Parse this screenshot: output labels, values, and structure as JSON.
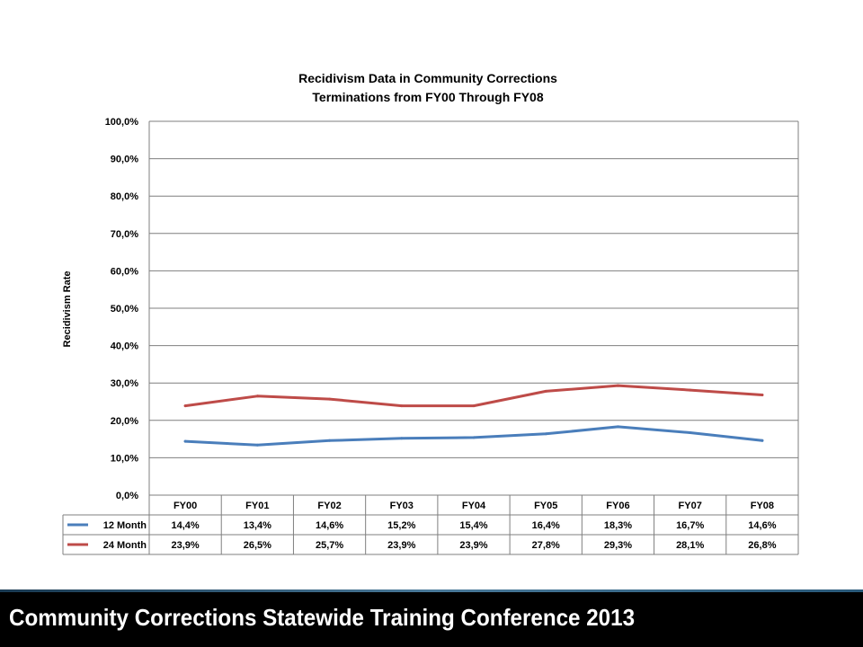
{
  "chart_data": {
    "type": "line",
    "title": [
      "Recidivism Data in Community Corrections",
      "Terminations from FY00 Through FY08"
    ],
    "ylabel": "Recidivism Rate",
    "ylim": [
      0,
      100
    ],
    "yticks": [
      "0,0%",
      "10,0%",
      "20,0%",
      "30,0%",
      "40,0%",
      "50,0%",
      "60,0%",
      "70,0%",
      "80,0%",
      "90,0%",
      "100,0%"
    ],
    "grid": true,
    "categories": [
      "FY00",
      "FY01",
      "FY02",
      "FY03",
      "FY04",
      "FY05",
      "FY06",
      "FY07",
      "FY08"
    ],
    "series": [
      {
        "name": "12 Month",
        "color": "#4a7ebb",
        "values": [
          14.4,
          13.4,
          14.6,
          15.2,
          15.4,
          16.4,
          18.3,
          16.7,
          14.6
        ],
        "labels": [
          "14,4%",
          "13,4%",
          "14,6%",
          "15,2%",
          "15,4%",
          "16,4%",
          "18,3%",
          "16,7%",
          "14,6%"
        ]
      },
      {
        "name": "24 Month",
        "color": "#be4b48",
        "values": [
          23.9,
          26.5,
          25.7,
          23.9,
          23.9,
          27.8,
          29.3,
          28.1,
          26.8
        ],
        "labels": [
          "23,9%",
          "26,5%",
          "25,7%",
          "23,9%",
          "23,9%",
          "27,8%",
          "29,3%",
          "28,1%",
          "26,8%"
        ]
      }
    ],
    "legend": "data-table"
  },
  "footer": {
    "text": "Community Corrections Statewide Training Conference 2013"
  }
}
